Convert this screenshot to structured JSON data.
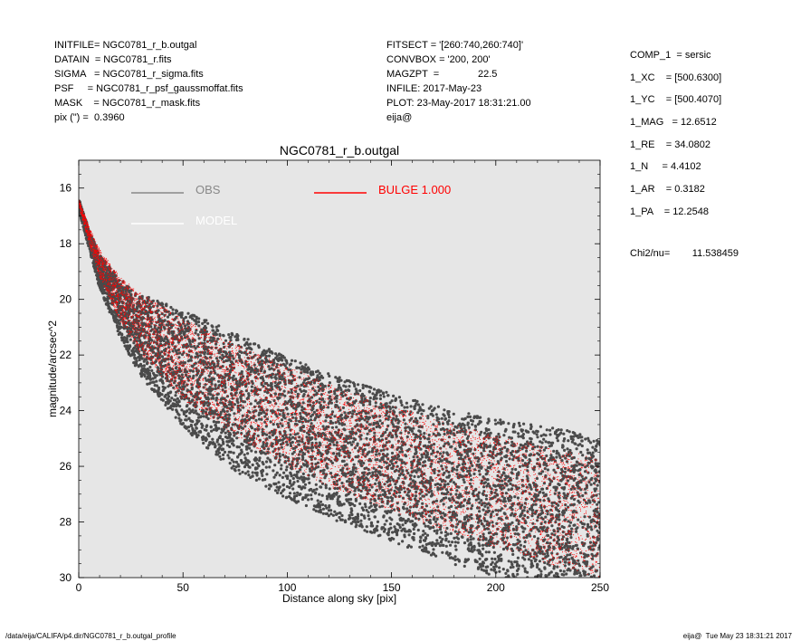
{
  "header": {
    "col1": [
      "INITFILE= NGC0781_r_b.outgal",
      "DATAIN  = NGC0781_r.fits",
      "SIGMA   = NGC0781_r_sigma.fits",
      "PSF     = NGC0781_r_psf_gaussmoffat.fits",
      "MASK    = NGC0781_r_mask.fits",
      "pix (\") =  0.3960"
    ],
    "col2": [
      "FITSECT = '[260:740,260:740]'",
      "CONVBOX = '200, 200'",
      "MAGZPT  =              22.5",
      "INFILE: 2017-May-23",
      "PLOT: 23-May-2017 18:31:21.00",
      "eija@"
    ],
    "params": [
      "COMP_1  = sersic",
      "1_XC    = [500.6300]",
      "1_YC    = [500.4070]",
      "1_MAG   = 12.6512",
      "1_RE    = 34.0802",
      "1_N     = 4.4102",
      "1_AR    = 0.3182",
      "1_PA    = 12.2548"
    ],
    "chi2": "Chi2/nu=        11.538459"
  },
  "chart_data": {
    "type": "scatter",
    "title": "NGC0781_r_b.outgal",
    "xlabel": "Distance along sky [pix]",
    "ylabel": "magnitude/arcsec^2",
    "xlim": [
      0,
      250
    ],
    "ylim": [
      30,
      15
    ],
    "x_ticks": [
      "0",
      "50",
      "100",
      "150",
      "200",
      "250"
    ],
    "y_ticks": [
      "16",
      "18",
      "20",
      "22",
      "24",
      "26",
      "28",
      "30"
    ],
    "background": "#e6e6e6",
    "legend": [
      {
        "label": "OBS",
        "color": "#888888"
      },
      {
        "label": "MODEL",
        "color": "#ffffff"
      },
      {
        "label": "BULGE  1.000",
        "color": "#ff0000"
      }
    ],
    "series": [
      {
        "name": "OBS",
        "color": "#4a4a4a",
        "upper_envelope": {
          "x": [
            0,
            5,
            10,
            20,
            30,
            50,
            75,
            100,
            125,
            150,
            175,
            200,
            225,
            250
          ],
          "y": [
            16.4,
            17.5,
            18.4,
            19.3,
            19.8,
            20.4,
            21.2,
            22.1,
            22.8,
            23.4,
            23.9,
            24.3,
            24.6,
            24.9
          ]
        },
        "lower_envelope": {
          "x": [
            0,
            5,
            10,
            20,
            30,
            50,
            75,
            100,
            125,
            150,
            175,
            200
          ],
          "y": [
            16.8,
            18.2,
            19.6,
            21.4,
            22.8,
            24.6,
            26.2,
            27.2,
            28.0,
            28.7,
            29.4,
            30.0
          ]
        }
      },
      {
        "name": "BULGE  1.000",
        "color": "#ff0000",
        "upper_envelope": {
          "x": [
            0,
            5,
            10,
            20,
            30,
            50,
            75,
            100,
            125,
            150,
            175,
            200,
            225,
            250
          ],
          "y": [
            16.4,
            17.4,
            18.2,
            19.2,
            19.8,
            20.7,
            21.6,
            22.4,
            23.2,
            23.8,
            24.4,
            24.9,
            25.3,
            25.7
          ]
        },
        "lower_envelope": {
          "x": [
            0,
            5,
            10,
            20,
            30,
            50,
            75,
            100,
            125,
            150,
            175,
            200,
            225,
            250
          ],
          "y": [
            16.6,
            18.0,
            19.2,
            20.8,
            22.0,
            23.6,
            24.9,
            26.0,
            26.9,
            27.6,
            28.3,
            28.9,
            29.5,
            30.0
          ]
        }
      }
    ]
  },
  "footer": {
    "path": "/data/eija/CALIFA/p4.dir/NGC0781_r_b.outgal_profile",
    "stamp": "eija@  Tue May 23 18:31:21 2017"
  }
}
